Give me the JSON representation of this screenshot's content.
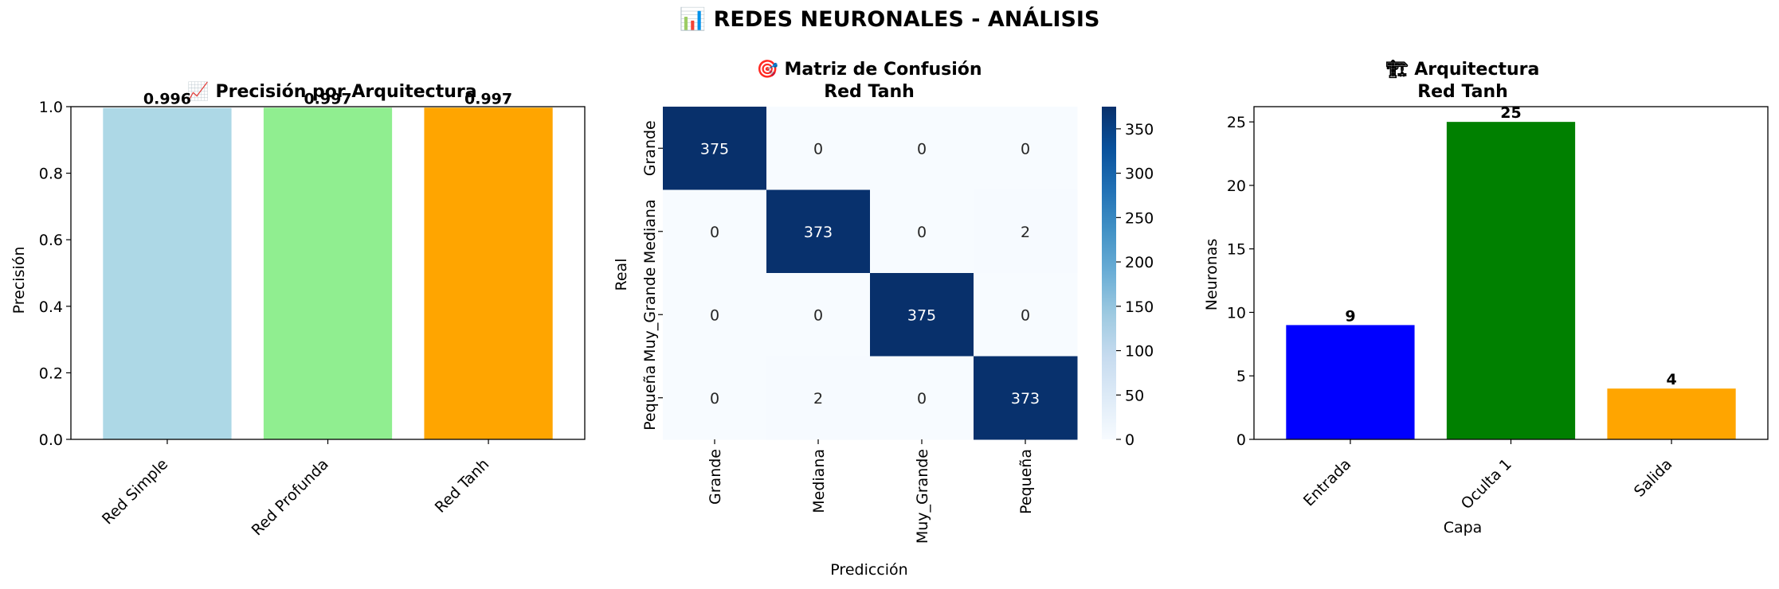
{
  "figure": {
    "suptitle": "📊 REDES NEURONALES - ANÁLISIS"
  },
  "chart_data": [
    {
      "type": "bar",
      "title": "📈 Precisión por Arquitectura",
      "xlabel": "",
      "ylabel": "Precisión",
      "ylim": [
        0,
        1.0
      ],
      "yticks": [
        0.0,
        0.2,
        0.4,
        0.6,
        0.8,
        1.0
      ],
      "ytick_labels": [
        "0.0",
        "0.2",
        "0.4",
        "0.6",
        "0.8",
        "1.0"
      ],
      "categories": [
        "Red Simple",
        "Red Profunda",
        "Red Tanh"
      ],
      "values": [
        0.996,
        0.997,
        0.997
      ],
      "value_labels": [
        "0.996",
        "0.997",
        "0.997"
      ],
      "colors": [
        "#add8e6",
        "#90ee90",
        "#ffa500"
      ],
      "grid": false
    },
    {
      "type": "heatmap",
      "title": "🎯 Matriz de Confusión",
      "subtitle": "Red Tanh",
      "xlabel": "Predicción",
      "ylabel": "Real",
      "x_categories": [
        "Grande",
        "Mediana",
        "Muy_Grande",
        "Pequeña"
      ],
      "y_categories": [
        "Grande",
        "Mediana",
        "Muy_Grande",
        "Pequeña"
      ],
      "matrix": [
        [
          375,
          0,
          0,
          0
        ],
        [
          0,
          373,
          0,
          2
        ],
        [
          0,
          0,
          375,
          0
        ],
        [
          0,
          2,
          0,
          373
        ]
      ],
      "colormap": "Blues",
      "colorbar": {
        "range": [
          0,
          375
        ],
        "ticks": [
          0,
          50,
          100,
          150,
          200,
          250,
          300,
          350
        ],
        "tick_labels": [
          "0",
          "50",
          "100",
          "150",
          "200",
          "250",
          "300",
          "350"
        ]
      }
    },
    {
      "type": "bar",
      "title": "🏗 Arquitectura",
      "subtitle": "Red Tanh",
      "xlabel": "Capa",
      "ylabel": "Neuronas",
      "ylim": [
        0,
        26.2
      ],
      "yticks": [
        0,
        5,
        10,
        15,
        20,
        25
      ],
      "ytick_labels": [
        "0",
        "5",
        "10",
        "15",
        "20",
        "25"
      ],
      "categories": [
        "Entrada",
        "Oculta 1",
        "Salida"
      ],
      "values": [
        9,
        25,
        4
      ],
      "value_labels": [
        "9",
        "25",
        "4"
      ],
      "colors": [
        "#0000ff",
        "#008000",
        "#ffa500"
      ],
      "grid": false
    }
  ]
}
